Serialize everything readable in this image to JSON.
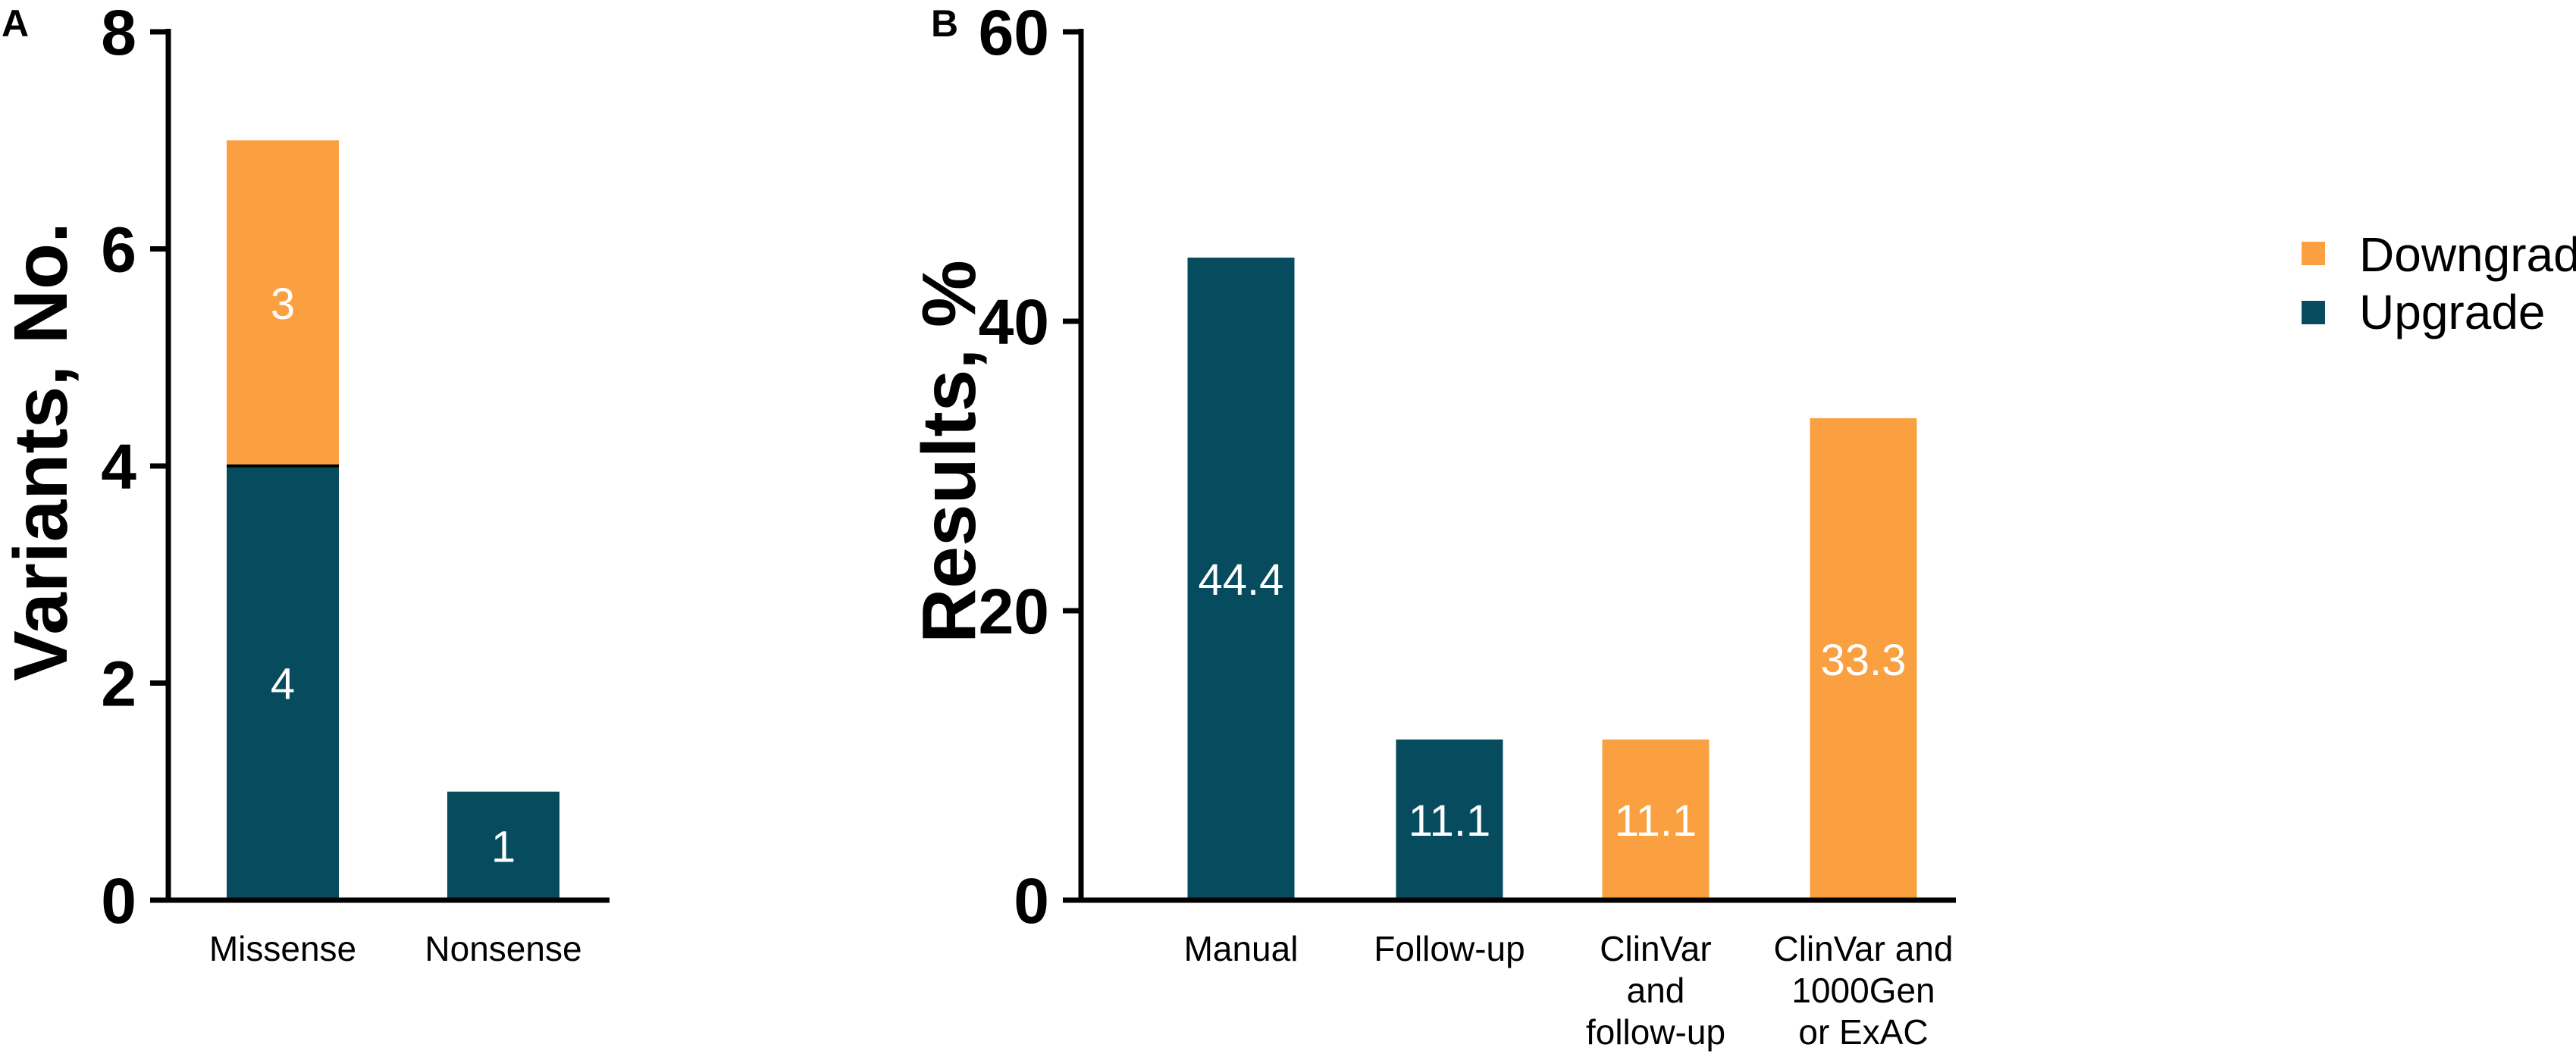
{
  "colors": {
    "downgrade": "#FBA040",
    "upgrade": "#064B5E",
    "axis": "#000000"
  },
  "chart_data": [
    {
      "panel": "A",
      "type": "bar",
      "stacked": true,
      "categories": [
        "Missense",
        "Nonsense"
      ],
      "series": [
        {
          "name": "Upgrade",
          "color": "#064B5E",
          "values": [
            4,
            1
          ],
          "labels": [
            "4",
            "1"
          ]
        },
        {
          "name": "Downgrade",
          "color": "#FBA040",
          "values": [
            3,
            0
          ],
          "labels": [
            "3",
            ""
          ]
        }
      ],
      "ylabel": "Variants, No.",
      "ylim": [
        0,
        8
      ],
      "yticks": [
        "0",
        "2",
        "4",
        "6",
        "8"
      ]
    },
    {
      "panel": "B",
      "type": "bar",
      "categories": [
        [
          "Manual"
        ],
        [
          "Follow-up"
        ],
        [
          "ClinVar",
          "and",
          "follow-up"
        ],
        [
          "ClinVar and",
          "1000Gen",
          "or ExAC"
        ]
      ],
      "values": [
        44.4,
        11.1,
        11.1,
        33.3
      ],
      "labels": [
        "44.4",
        "11.1",
        "11.1",
        "33.3"
      ],
      "bar_series": [
        "Upgrade",
        "Upgrade",
        "Downgrade",
        "Downgrade"
      ],
      "ylabel": "Results, %",
      "ylim": [
        0,
        60
      ],
      "yticks": [
        "0",
        "20",
        "40",
        "60"
      ]
    }
  ],
  "legend": {
    "position": "right",
    "items": [
      {
        "label": "Downgrade",
        "color": "#FBA040"
      },
      {
        "label": "Upgrade",
        "color": "#064B5E"
      }
    ]
  }
}
